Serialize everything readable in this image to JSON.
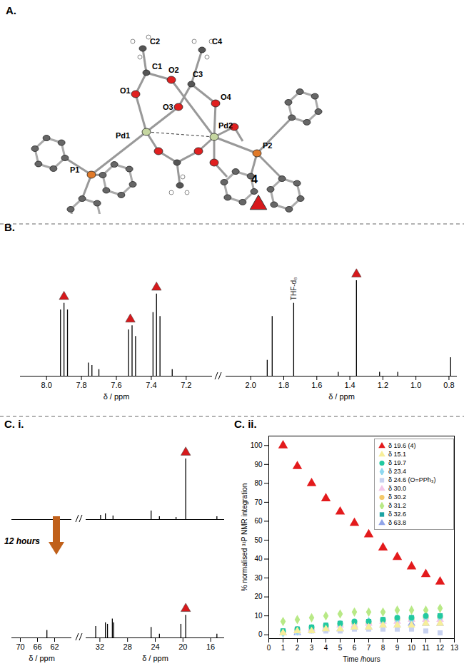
{
  "structure": {
    "panel_label": "A.",
    "atoms": [
      "C2",
      "C1",
      "O1",
      "O2",
      "C3",
      "O3",
      "C4",
      "O4",
      "Pd1",
      "Pd2",
      "P1",
      "P2"
    ],
    "compound": "4",
    "marker": "triangle",
    "color": "#d7191c"
  },
  "chart_data": [
    {
      "type": "spectrum",
      "panel_label": "B.",
      "xlabel": "δ / ppm",
      "tick_labels": "x",
      "ylim": [
        0,
        1
      ],
      "segments": [
        {
          "xlim": [
            8.15,
            7.05
          ],
          "xticks": [
            {
              "value": 8,
              "label": "8.0"
            },
            7.8,
            7.6,
            7.4,
            7.2
          ]
        },
        {
          "xlim": [
            2.15,
            0.75
          ],
          "xticks": [
            {
              "value": 2,
              "label": "2.0"
            },
            1.8,
            1.6,
            1.4,
            1.2,
            {
              "value": 1,
              "label": "1.0"
            },
            0.8
          ]
        }
      ],
      "x": [
        7.92,
        7.9,
        7.88,
        7.76,
        7.74,
        7.7,
        7.53,
        7.51,
        7.49,
        7.39,
        7.37,
        7.35,
        7.28,
        1.9,
        1.87,
        1.74,
        1.47,
        1.36,
        1.22,
        1.11,
        0.79
      ],
      "values": [
        0.5,
        0.55,
        0.5,
        0.1,
        0.08,
        0.05,
        0.35,
        0.38,
        0.3,
        0.48,
        0.62,
        0.45,
        0.05,
        0.12,
        0.45,
        0.55,
        0.03,
        0.72,
        0.03,
        0.03,
        0.14
      ],
      "markers_x": [
        7.9,
        7.52,
        7.37,
        1.36
      ],
      "marker": "triangle",
      "color": "#d7191c",
      "annotations": [
        {
          "text": "THF-d₈",
          "x": 1.74
        }
      ]
    },
    {
      "type": "spectrum",
      "panel_label": "C. i.",
      "xlabel": "δ / ppm",
      "tick_labels": "x",
      "ylim": [
        0,
        1
      ],
      "segments": [
        {
          "xlim": [
            72,
            58
          ],
          "xticks": [
            70,
            66,
            62
          ]
        },
        {
          "xlim": [
            34,
            14
          ],
          "xticks": [
            32,
            28,
            24,
            20,
            16
          ]
        }
      ],
      "spectra": [
        {
          "x": [
            31.9,
            31.2,
            30.1,
            24.6,
            23.4,
            21.0,
            19.6,
            15.1
          ],
          "values": [
            0.06,
            0.08,
            0.05,
            0.12,
            0.04,
            0.03,
            0.85,
            0.04
          ]
        },
        {
          "x": [
            63.8,
            32.6,
            31.2,
            30.9,
            30.2,
            30.0,
            24.6,
            23.4,
            20.3,
            19.6,
            15.1
          ],
          "values": [
            0.1,
            0.15,
            0.2,
            0.18,
            0.25,
            0.2,
            0.14,
            0.05,
            0.18,
            0.3,
            0.05
          ]
        }
      ],
      "markers_x": [
        19.6
      ],
      "marker": "triangle",
      "color": "#d7191c",
      "annotations": [
        {
          "text": "12 hours"
        }
      ]
    },
    {
      "type": "scatter",
      "panel_label": "C. ii.",
      "xlabel": "Time /hours",
      "ylabel": "% normalised ³¹P NMR integration",
      "xlim": [
        0,
        13
      ],
      "xticks": [
        0,
        1,
        2,
        3,
        4,
        5,
        6,
        7,
        8,
        9,
        10,
        11,
        12,
        13
      ],
      "ylim": [
        -2,
        105
      ],
      "yticks": [
        0,
        10,
        20,
        30,
        40,
        50,
        60,
        70,
        80,
        90,
        100
      ],
      "legend": "top-right",
      "x": [
        1,
        2,
        3,
        4,
        5,
        6,
        7,
        8,
        9,
        10,
        11,
        12
      ],
      "series": [
        {
          "name": "δ 19.6 (4)",
          "color": "#e31a1c",
          "marker": "triangle",
          "values": [
            100,
            89,
            80,
            72,
            65,
            59,
            53,
            46,
            41,
            36,
            32,
            28
          ]
        },
        {
          "name": "δ 15.1",
          "color": "#f7ee9a",
          "marker": "triangle",
          "values": [
            1,
            2,
            2,
            3,
            3,
            4,
            4,
            5,
            5,
            5,
            6,
            6
          ]
        },
        {
          "name": "δ 19.7",
          "color": "#22c9a0",
          "marker": "circle",
          "values": [
            2,
            3,
            4,
            5,
            6,
            7,
            7,
            8,
            9,
            9,
            10,
            10
          ]
        },
        {
          "name": "δ 23.4",
          "color": "#8fd8f0",
          "marker": "diamond",
          "values": [
            1,
            2,
            3,
            4,
            5,
            6,
            7,
            7,
            8,
            8,
            9,
            9
          ]
        },
        {
          "name": "δ 24.6 (O=PPh₃)",
          "color": "#c8d2f0",
          "marker": "square",
          "values": [
            1,
            1,
            2,
            2,
            2,
            3,
            3,
            3,
            3,
            3,
            2,
            1
          ]
        },
        {
          "name": "δ 30.0",
          "color": "#f4c6e8",
          "marker": "triangle",
          "values": [
            1,
            2,
            3,
            4,
            5,
            5,
            6,
            7,
            7,
            8,
            8,
            8
          ]
        },
        {
          "name": "δ 30.2",
          "color": "#f5c96a",
          "marker": "circle",
          "values": [
            1,
            2,
            3,
            4,
            5,
            6,
            6,
            7,
            8,
            8,
            9,
            9
          ]
        },
        {
          "name": "δ 31.2",
          "color": "#b8e986",
          "marker": "diamond",
          "values": [
            7,
            8,
            9,
            10,
            11,
            12,
            12,
            12,
            13,
            13,
            13,
            14
          ]
        },
        {
          "name": "δ 32.6",
          "color": "#1aa3a3",
          "marker": "square",
          "values": [
            2,
            3,
            4,
            5,
            6,
            6,
            7,
            8,
            8,
            9,
            9,
            10
          ]
        },
        {
          "name": "δ 63.8",
          "color": "#8fa3e8",
          "marker": "triangle",
          "values": [
            1,
            1,
            2,
            3,
            3,
            4,
            4,
            5,
            5,
            6,
            6,
            6
          ]
        }
      ]
    }
  ]
}
